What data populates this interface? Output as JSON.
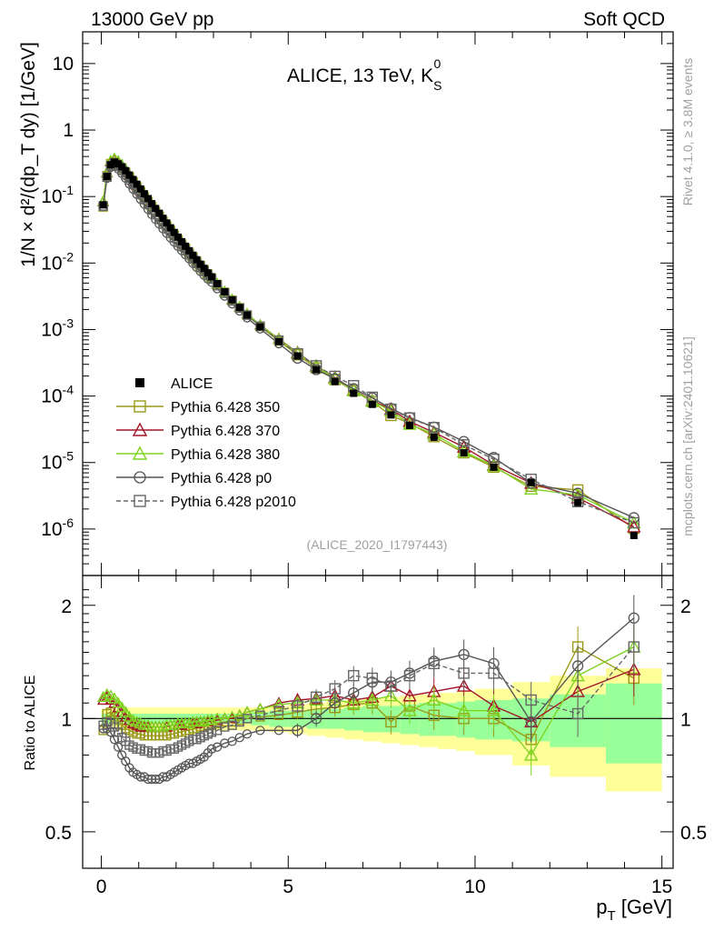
{
  "header": {
    "left": "13000 GeV pp",
    "right": "Soft QCD"
  },
  "side_labels": {
    "rivet": "Rivet 4.1.0, ≥ 3.8M events",
    "site": "mcplots.cern.ch [arXiv:2401.10621]"
  },
  "chart_data": {
    "type": "line",
    "title": "ALICE, 13 TeV, K",
    "title_sup": "0",
    "title_sub": "S",
    "analysis_id": "(ALICE_2020_I1797443)",
    "xlabel": "p",
    "xlabel_sub": "T",
    "xlabel_unit": "[GeV]",
    "ylabel_main": "1/N × d²/(dp_T dy) [1/GeV]",
    "ylabel_ratio": "Ratio to ALICE",
    "xlim": [
      -0.5,
      15.3
    ],
    "ylim_main": [
      2e-07,
      30
    ],
    "ylim_ratio": [
      0.4,
      2.4
    ],
    "xticks": [
      "0",
      "5",
      "10",
      "15"
    ],
    "yticks_main": [
      {
        "base": "10",
        "exp": "-6",
        "value": 1e-06
      },
      {
        "base": "10",
        "exp": "-5",
        "value": 1e-05
      },
      {
        "base": "10",
        "exp": "-4",
        "value": 0.0001
      },
      {
        "base": "10",
        "exp": "-3",
        "value": 0.001
      },
      {
        "base": "10",
        "exp": "-2",
        "value": 0.01
      },
      {
        "base": "10",
        "exp": "-1",
        "value": 0.1
      },
      {
        "base": "1",
        "exp": "",
        "value": 1
      },
      {
        "base": "10",
        "exp": "",
        "value": 10
      }
    ],
    "yticks_ratio": [
      {
        "label": "0.5",
        "value": 0.5
      },
      {
        "label": "1",
        "value": 1
      },
      {
        "label": "2",
        "value": 2
      }
    ],
    "reference": {
      "name": "ALICE",
      "x": [
        0.05,
        0.15,
        0.25,
        0.35,
        0.45,
        0.55,
        0.65,
        0.75,
        0.85,
        0.95,
        1.05,
        1.15,
        1.25,
        1.35,
        1.45,
        1.55,
        1.65,
        1.75,
        1.85,
        1.95,
        2.05,
        2.15,
        2.25,
        2.35,
        2.45,
        2.55,
        2.65,
        2.75,
        2.85,
        2.95,
        3.1,
        3.3,
        3.5,
        3.7,
        3.9,
        4.25,
        4.75,
        5.25,
        5.75,
        6.25,
        6.75,
        7.25,
        7.75,
        8.25,
        8.9,
        9.7,
        10.5,
        11.5,
        12.75,
        14.25
      ],
      "y": [
        0.075,
        0.2,
        0.3,
        0.33,
        0.31,
        0.28,
        0.245,
        0.21,
        0.18,
        0.153,
        0.13,
        0.11,
        0.093,
        0.078,
        0.066,
        0.056,
        0.047,
        0.04,
        0.0338,
        0.0288,
        0.0245,
        0.0209,
        0.0179,
        0.0153,
        0.0131,
        0.0112,
        0.0096,
        0.0083,
        0.0071,
        0.0062,
        0.0049,
        0.0037,
        0.0028,
        0.00214,
        0.00165,
        0.0011,
        0.00066,
        0.0004,
        0.00025,
        0.000165,
        0.00011,
        7.5e-05,
        5.2e-05,
        3.6e-05,
        2.4e-05,
        1.4e-05,
        8.5e-06,
        5e-06,
        2.5e-06,
        8e-07
      ],
      "band_x_edges": [
        0,
        0.5,
        1,
        1.5,
        2,
        2.5,
        3,
        3.5,
        4,
        4.5,
        5,
        5.5,
        6,
        6.5,
        7,
        7.5,
        8,
        8.5,
        9,
        9.5,
        10,
        11,
        12,
        13.5,
        15
      ],
      "band_stat": [
        0.03,
        0.03,
        0.03,
        0.03,
        0.03,
        0.03,
        0.03,
        0.03,
        0.04,
        0.05,
        0.05,
        0.06,
        0.06,
        0.07,
        0.08,
        0.08,
        0.09,
        0.1,
        0.1,
        0.11,
        0.12,
        0.13,
        0.16,
        0.24
      ],
      "band_tot": [
        0.06,
        0.07,
        0.07,
        0.07,
        0.07,
        0.07,
        0.07,
        0.07,
        0.07,
        0.08,
        0.09,
        0.1,
        0.11,
        0.12,
        0.13,
        0.14,
        0.15,
        0.16,
        0.17,
        0.18,
        0.2,
        0.25,
        0.3,
        0.36
      ]
    },
    "series": [
      {
        "name": "Pythia 6.428 350",
        "color": "#9a9a18",
        "marker": "square-open",
        "dash": false,
        "ratio": [
          0.93,
          1.03,
          1.04,
          1.01,
          0.99,
          0.96,
          0.94,
          0.93,
          0.92,
          0.91,
          0.91,
          0.9,
          0.9,
          0.9,
          0.9,
          0.9,
          0.9,
          0.9,
          0.91,
          0.91,
          0.92,
          0.92,
          0.93,
          0.93,
          0.94,
          0.94,
          0.95,
          0.95,
          0.96,
          0.96,
          0.97,
          0.98,
          0.98,
          0.99,
          1.0,
          1.01,
          1.02,
          1.04,
          1.06,
          1.07,
          1.09,
          1.1,
          0.98,
          1.08,
          1.02,
          1.0,
          1.0,
          0.88,
          1.55,
          1.28
        ]
      },
      {
        "name": "Pythia 6.428 370",
        "color": "#a3162a",
        "marker": "triangle-open",
        "dash": false,
        "ratio": [
          1.12,
          1.14,
          1.12,
          1.1,
          1.07,
          1.04,
          1.01,
          0.99,
          0.97,
          0.96,
          0.95,
          0.95,
          0.95,
          0.95,
          0.95,
          0.95,
          0.95,
          0.95,
          0.96,
          0.96,
          0.96,
          0.96,
          0.97,
          0.97,
          0.97,
          0.97,
          0.98,
          0.98,
          0.98,
          0.99,
          0.99,
          1.0,
          1.0,
          1.02,
          1.04,
          1.06,
          1.1,
          1.12,
          1.13,
          1.15,
          1.12,
          1.14,
          1.22,
          1.15,
          1.18,
          1.22,
          1.08,
          0.98,
          1.18,
          1.35
        ]
      },
      {
        "name": "Pythia 6.428 380",
        "color": "#7ed321",
        "marker": "triangle-open",
        "dash": false,
        "ratio": [
          1.14,
          1.16,
          1.15,
          1.13,
          1.1,
          1.07,
          1.04,
          1.01,
          0.99,
          0.98,
          0.97,
          0.96,
          0.96,
          0.95,
          0.95,
          0.95,
          0.95,
          0.96,
          0.96,
          0.96,
          0.97,
          0.97,
          0.97,
          0.97,
          0.98,
          0.98,
          0.98,
          0.98,
          0.99,
          0.99,
          1.0,
          1.0,
          1.01,
          1.02,
          1.04,
          1.06,
          1.09,
          1.1,
          1.12,
          1.12,
          1.1,
          1.12,
          1.15,
          1.05,
          1.12,
          1.05,
          1.05,
          0.8,
          1.3,
          1.55
        ]
      },
      {
        "name": "Pythia 6.428 p0",
        "color": "#555555",
        "marker": "circle-open",
        "dash": false,
        "ratio": [
          0.94,
          0.94,
          0.92,
          0.88,
          0.84,
          0.8,
          0.77,
          0.74,
          0.72,
          0.71,
          0.7,
          0.7,
          0.69,
          0.69,
          0.69,
          0.69,
          0.7,
          0.7,
          0.71,
          0.72,
          0.73,
          0.74,
          0.75,
          0.76,
          0.76,
          0.77,
          0.78,
          0.79,
          0.81,
          0.83,
          0.84,
          0.86,
          0.87,
          0.89,
          0.91,
          0.93,
          0.93,
          0.93,
          1.0,
          1.1,
          1.17,
          1.25,
          1.25,
          1.32,
          1.42,
          1.48,
          1.4,
          0.98,
          1.38,
          1.85
        ]
      },
      {
        "name": "Pythia 6.428 p2010",
        "color": "#666666",
        "marker": "square-open",
        "dash": true,
        "ratio": [
          0.96,
          0.98,
          0.97,
          0.95,
          0.92,
          0.89,
          0.87,
          0.85,
          0.84,
          0.83,
          0.83,
          0.82,
          0.82,
          0.81,
          0.81,
          0.81,
          0.82,
          0.82,
          0.83,
          0.83,
          0.84,
          0.85,
          0.86,
          0.87,
          0.88,
          0.88,
          0.89,
          0.9,
          0.91,
          0.92,
          0.93,
          0.95,
          0.96,
          0.98,
          1.0,
          1.02,
          1.05,
          1.08,
          1.14,
          1.2,
          1.3,
          1.28,
          1.22,
          1.3,
          1.4,
          1.32,
          1.32,
          1.12,
          1.03,
          1.55
        ]
      }
    ]
  }
}
